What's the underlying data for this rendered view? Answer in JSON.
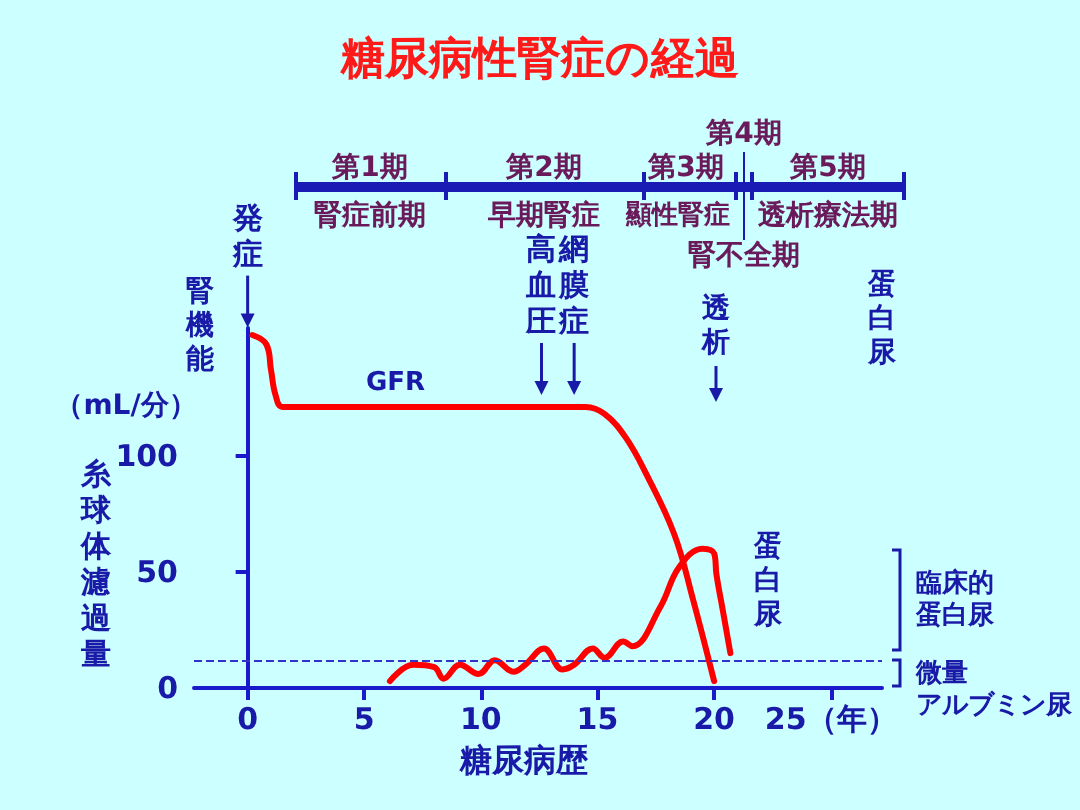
{
  "chart_data": {
    "type": "line",
    "title": "糖尿病性腎症の経過",
    "xlabel": "糖尿病歴",
    "ylabel": "糸球体濾過量",
    "y2label": "蛋白尿",
    "xlim": [
      -2.3,
      27.2
    ],
    "xticks": [
      0,
      5,
      10,
      15,
      20,
      {
        "value": 25,
        "label": "25（年）"
      }
    ],
    "ylim": [
      0,
      155
    ],
    "yticks": [
      0,
      50,
      100
    ],
    "series": [
      {
        "name": "GFR",
        "color": "#ff0000",
        "x": [
          0.2,
          0.8,
          1.0,
          1.2,
          1.5,
          6,
          14.5,
          15.3,
          16.2,
          17.1,
          18.3,
          19.1,
          20.0
        ],
        "values": [
          152,
          148,
          137,
          126,
          121,
          121,
          121,
          118,
          108,
          92,
          66,
          38,
          3
        ]
      },
      {
        "name": "蛋白尿",
        "color": "#ff0000",
        "x": [
          6.1,
          7.1,
          8.0,
          8.4,
          9.1,
          9.9,
          10.6,
          11.4,
          11.9,
          12.7,
          13.5,
          14.0,
          14.8,
          15.3,
          16.1,
          16.5,
          17.7,
          18.5,
          19.5,
          20.0,
          20.1,
          20.4,
          20.7
        ],
        "values": [
          3,
          10,
          9,
          4,
          10,
          6,
          12,
          7,
          10,
          17,
          8,
          10,
          17,
          13,
          20,
          18,
          35,
          52,
          60,
          58,
          49,
          32,
          15
        ]
      }
    ],
    "ref_lines": [
      {
        "axis": "y",
        "value": 12,
        "color": "#3333cc",
        "line_style": "dashed"
      }
    ],
    "annotations": [
      "第1期",
      "腎症前期",
      "第2期",
      "早期腎症",
      "第3期",
      "顯性腎症",
      "第4期",
      "腎不全期",
      "第5期",
      "透析療法期",
      "腎機能",
      "（mL/分）",
      "透析",
      "臨床的蛋白尿",
      "微量アルブミン尿",
      {
        "text": "発症",
        "x": 0,
        "y": 150
      },
      {
        "text": "高血圧",
        "x": 12.6,
        "y": 121
      },
      {
        "text": "網膜症",
        "x": 14.0,
        "y": 121
      }
    ]
  }
}
